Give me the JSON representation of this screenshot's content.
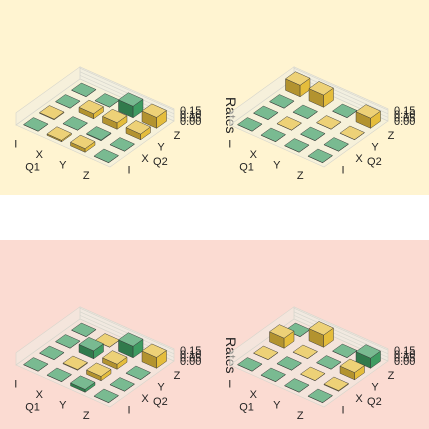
{
  "bands": {
    "top_color": "#fff4d1",
    "bottom_color": "#fbdbd2"
  },
  "colors": {
    "yellow": "#e5bd3c",
    "green": "#3f9c62",
    "panel_fill": "#eeede4",
    "grid": "#d6d5cc"
  },
  "chart_data": [
    {
      "type": "bar3d",
      "zlabel": "Rates",
      "xlabel": "Q1",
      "ylabel": "Q2",
      "x_ticks": [
        "I",
        "X",
        "Y",
        "Z"
      ],
      "y_ticks": [
        "I",
        "X",
        "Y",
        "Z"
      ],
      "z_ticks": [
        "0.00",
        "0.05",
        "0.10",
        "0.15"
      ],
      "zlim": [
        0,
        0.16
      ],
      "bars": [
        {
          "q1": "I",
          "q2": "I",
          "rate": 0.0,
          "color": "green"
        },
        {
          "q1": "I",
          "q2": "X",
          "rate": 0.01,
          "color": "yellow"
        },
        {
          "q1": "I",
          "q2": "Y",
          "rate": 0.0,
          "color": "green"
        },
        {
          "q1": "I",
          "q2": "Z",
          "rate": 0.0,
          "color": "green"
        },
        {
          "q1": "X",
          "q2": "I",
          "rate": 0.02,
          "color": "yellow"
        },
        {
          "q1": "X",
          "q2": "X",
          "rate": 0.0,
          "color": "green"
        },
        {
          "q1": "X",
          "q2": "Y",
          "rate": 0.07,
          "color": "yellow"
        },
        {
          "q1": "X",
          "q2": "Z",
          "rate": 0.0,
          "color": "green"
        },
        {
          "q1": "Y",
          "q2": "I",
          "rate": 0.05,
          "color": "yellow"
        },
        {
          "q1": "Y",
          "q2": "X",
          "rate": 0.01,
          "color": "green"
        },
        {
          "q1": "Y",
          "q2": "Y",
          "rate": 0.09,
          "color": "yellow"
        },
        {
          "q1": "Y",
          "q2": "Z",
          "rate": 0.16,
          "color": "green"
        },
        {
          "q1": "Z",
          "q2": "I",
          "rate": 0.0,
          "color": "green"
        },
        {
          "q1": "Z",
          "q2": "X",
          "rate": 0.0,
          "color": "green"
        },
        {
          "q1": "Z",
          "q2": "Y",
          "rate": 0.08,
          "color": "yellow"
        },
        {
          "q1": "Z",
          "q2": "Z",
          "rate": 0.15,
          "color": "yellow"
        }
      ]
    },
    {
      "type": "bar3d",
      "zlabel": "Rates",
      "xlabel": "Q1",
      "ylabel": "Q2",
      "x_ticks": [
        "I",
        "X",
        "Y",
        "Z"
      ],
      "y_ticks": [
        "I",
        "X",
        "Y",
        "Z"
      ],
      "z_ticks": [
        "0.00",
        "0.05",
        "0.10",
        "0.15"
      ],
      "zlim": [
        0,
        0.16
      ],
      "bars": [
        {
          "q1": "I",
          "q2": "I",
          "rate": 0.0,
          "color": "green"
        },
        {
          "q1": "I",
          "q2": "X",
          "rate": 0.0,
          "color": "green"
        },
        {
          "q1": "I",
          "q2": "Y",
          "rate": 0.0,
          "color": "green"
        },
        {
          "q1": "I",
          "q2": "Z",
          "rate": 0.16,
          "color": "yellow"
        },
        {
          "q1": "X",
          "q2": "I",
          "rate": 0.0,
          "color": "green"
        },
        {
          "q1": "X",
          "q2": "X",
          "rate": 0.0,
          "color": "yellow"
        },
        {
          "q1": "X",
          "q2": "Y",
          "rate": 0.0,
          "color": "green"
        },
        {
          "q1": "X",
          "q2": "Z",
          "rate": 0.17,
          "color": "yellow"
        },
        {
          "q1": "Y",
          "q2": "I",
          "rate": 0.0,
          "color": "green"
        },
        {
          "q1": "Y",
          "q2": "X",
          "rate": 0.0,
          "color": "green"
        },
        {
          "q1": "Y",
          "q2": "Y",
          "rate": 0.0,
          "color": "yellow"
        },
        {
          "q1": "Y",
          "q2": "Z",
          "rate": 0.0,
          "color": "green"
        },
        {
          "q1": "Z",
          "q2": "I",
          "rate": 0.0,
          "color": "green"
        },
        {
          "q1": "Z",
          "q2": "X",
          "rate": 0.0,
          "color": "green"
        },
        {
          "q1": "Z",
          "q2": "Y",
          "rate": 0.0,
          "color": "yellow"
        },
        {
          "q1": "Z",
          "q2": "Z",
          "rate": 0.14,
          "color": "yellow"
        }
      ]
    },
    {
      "type": "bar3d",
      "zlabel": "Rates",
      "xlabel": "Q1",
      "ylabel": "Q2",
      "x_ticks": [
        "I",
        "X",
        "Y",
        "Z"
      ],
      "y_ticks": [
        "I",
        "X",
        "Y",
        "Z"
      ],
      "z_ticks": [
        "0.00",
        "0.05",
        "0.10",
        "0.15"
      ],
      "zlim": [
        0,
        0.16
      ],
      "bars": [
        {
          "q1": "I",
          "q2": "I",
          "rate": 0.0,
          "color": "green"
        },
        {
          "q1": "I",
          "q2": "X",
          "rate": 0.0,
          "color": "green"
        },
        {
          "q1": "I",
          "q2": "Y",
          "rate": 0.0,
          "color": "green"
        },
        {
          "q1": "I",
          "q2": "Z",
          "rate": 0.0,
          "color": "green"
        },
        {
          "q1": "X",
          "q2": "I",
          "rate": 0.0,
          "color": "green"
        },
        {
          "q1": "X",
          "q2": "X",
          "rate": 0.01,
          "color": "yellow"
        },
        {
          "q1": "X",
          "q2": "Y",
          "rate": 0.11,
          "color": "green"
        },
        {
          "q1": "X",
          "q2": "Z",
          "rate": 0.0,
          "color": "yellow"
        },
        {
          "q1": "Y",
          "q2": "I",
          "rate": 0.04,
          "color": "green"
        },
        {
          "q1": "Y",
          "q2": "X",
          "rate": 0.06,
          "color": "yellow"
        },
        {
          "q1": "Y",
          "q2": "Y",
          "rate": 0.07,
          "color": "yellow"
        },
        {
          "q1": "Y",
          "q2": "Z",
          "rate": 0.16,
          "color": "green"
        },
        {
          "q1": "Z",
          "q2": "I",
          "rate": 0.0,
          "color": "green"
        },
        {
          "q1": "Z",
          "q2": "X",
          "rate": 0.0,
          "color": "green"
        },
        {
          "q1": "Z",
          "q2": "Y",
          "rate": 0.0,
          "color": "green"
        },
        {
          "q1": "Z",
          "q2": "Z",
          "rate": 0.15,
          "color": "yellow"
        }
      ]
    },
    {
      "type": "bar3d",
      "zlabel": "Rates",
      "xlabel": "Q1",
      "ylabel": "Q2",
      "x_ticks": [
        "I",
        "X",
        "Y",
        "Z"
      ],
      "y_ticks": [
        "I",
        "X",
        "Y",
        "Z"
      ],
      "z_ticks": [
        "0.00",
        "0.05",
        "0.10",
        "0.15"
      ],
      "zlim": [
        0,
        0.16
      ],
      "bars": [
        {
          "q1": "I",
          "q2": "I",
          "rate": 0.0,
          "color": "green"
        },
        {
          "q1": "I",
          "q2": "X",
          "rate": 0.0,
          "color": "yellow"
        },
        {
          "q1": "I",
          "q2": "Y",
          "rate": 0.14,
          "color": "yellow"
        },
        {
          "q1": "I",
          "q2": "Z",
          "rate": 0.0,
          "color": "green"
        },
        {
          "q1": "X",
          "q2": "I",
          "rate": 0.0,
          "color": "green"
        },
        {
          "q1": "X",
          "q2": "X",
          "rate": 0.0,
          "color": "green"
        },
        {
          "q1": "X",
          "q2": "Y",
          "rate": 0.0,
          "color": "yellow"
        },
        {
          "q1": "X",
          "q2": "Z",
          "rate": 0.17,
          "color": "yellow"
        },
        {
          "q1": "Y",
          "q2": "I",
          "rate": 0.0,
          "color": "green"
        },
        {
          "q1": "Y",
          "q2": "X",
          "rate": 0.0,
          "color": "yellow"
        },
        {
          "q1": "Y",
          "q2": "Y",
          "rate": 0.0,
          "color": "green"
        },
        {
          "q1": "Y",
          "q2": "Z",
          "rate": 0.0,
          "color": "green"
        },
        {
          "q1": "Z",
          "q2": "I",
          "rate": 0.0,
          "color": "green"
        },
        {
          "q1": "Z",
          "q2": "X",
          "rate": 0.01,
          "color": "yellow"
        },
        {
          "q1": "Z",
          "q2": "Y",
          "rate": 0.1,
          "color": "yellow"
        },
        {
          "q1": "Z",
          "q2": "Z",
          "rate": 0.14,
          "color": "green"
        }
      ]
    }
  ]
}
